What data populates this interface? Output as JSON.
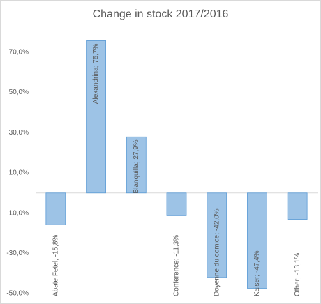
{
  "chart_data": {
    "type": "bar",
    "title": "Change in stock 2017/2016",
    "values": [
      -15.8,
      75.7,
      27.9,
      -11.3,
      -42.0,
      -47.4,
      -13.1
    ],
    "value_labels": [
      "Abate Fetel; -15,8%",
      "Alexandrina; 75,7%",
      "Blanquilla; 27,9%",
      "Conference; -11,3%",
      "Doyenne du comice; -42,0%",
      "Kaiser; -47,4%",
      "Other; -13,1%"
    ],
    "color": "#9dc3e6",
    "ylim": [
      -50,
      80
    ],
    "yticks": [
      {
        "value": -50,
        "label": "-50,0%"
      },
      {
        "value": -30,
        "label": "-30,0%"
      },
      {
        "value": -10,
        "label": "-10,0%"
      },
      {
        "value": 10,
        "label": "10,0%"
      },
      {
        "value": 30,
        "label": "30,0%"
      },
      {
        "value": 50,
        "label": "50,0%"
      },
      {
        "value": 70,
        "label": "70,0%"
      }
    ],
    "grid": false
  }
}
